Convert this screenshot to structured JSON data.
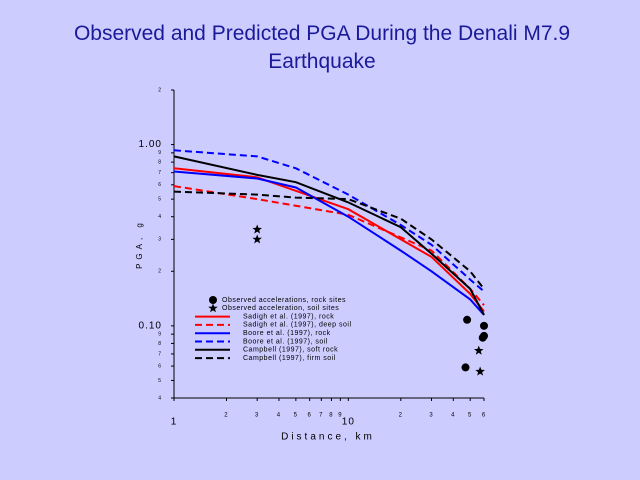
{
  "chart_data": {
    "type": "line",
    "title": "Observed and Predicted PGA During the Denali M7.9 Earthquake",
    "xlabel": "Distance, km",
    "ylabel": "PGA, g",
    "xscale": "log",
    "yscale": "log",
    "xlim": [
      1,
      60
    ],
    "ylim": [
      0.04,
      2
    ],
    "xticks": [
      1,
      2,
      3,
      4,
      5,
      6,
      7,
      8,
      9,
      10,
      {
        "value": 20,
        "label": "2"
      },
      {
        "value": 30,
        "label": "3"
      },
      {
        "value": 40,
        "label": "4"
      },
      {
        "value": 50,
        "label": "5"
      },
      {
        "value": 60,
        "label": "6"
      }
    ],
    "yticks": [
      {
        "value": 0.04,
        "label": "4"
      },
      {
        "value": 0.05,
        "label": "5"
      },
      {
        "value": 0.06,
        "label": "6"
      },
      {
        "value": 0.07,
        "label": "7"
      },
      {
        "value": 0.08,
        "label": "8"
      },
      {
        "value": 0.09,
        "label": "9"
      },
      {
        "value": 0.1,
        "label": "0.10"
      },
      {
        "value": 0.2,
        "label": "2"
      },
      {
        "value": 0.3,
        "label": "3"
      },
      {
        "value": 0.4,
        "label": "4"
      },
      {
        "value": 0.5,
        "label": "5"
      },
      {
        "value": 0.6,
        "label": "6"
      },
      {
        "value": 0.7,
        "label": "7"
      },
      {
        "value": 0.8,
        "label": "8"
      },
      {
        "value": 0.9,
        "label": "9"
      },
      {
        "value": 1,
        "label": "1.00"
      },
      2
    ],
    "series": [
      {
        "name": "Observed accelerations, rock sites",
        "color": "#000000",
        "marker": "circle",
        "x": [
          48,
          47,
          60,
          60,
          59
        ],
        "values": [
          0.108,
          0.059,
          0.1,
          0.088,
          0.086
        ]
      },
      {
        "name": "Observed acceleration, soil sites",
        "color": "#000000",
        "marker": "star",
        "x": [
          3,
          3,
          56,
          57
        ],
        "values": [
          0.34,
          0.3,
          0.073,
          0.056
        ]
      },
      {
        "name": "Sadigh et al. (1997), rock",
        "color": "#ff0000",
        "linestyle": "solid",
        "x": [
          1,
          3,
          10,
          30,
          50,
          60
        ],
        "values": [
          0.74,
          0.66,
          0.44,
          0.24,
          0.15,
          0.12
        ]
      },
      {
        "name": "Sadigh et al. (1997), deep soil",
        "color": "#ff0000",
        "linestyle": "dashed",
        "x": [
          1,
          3,
          10,
          30,
          50,
          60
        ],
        "values": [
          0.59,
          0.5,
          0.41,
          0.26,
          0.16,
          0.13
        ]
      },
      {
        "name": "Boore et al. (1997), rock",
        "color": "#0000ff",
        "linestyle": "solid",
        "x": [
          1,
          3,
          5,
          10,
          20,
          30,
          50,
          60
        ],
        "values": [
          0.71,
          0.65,
          0.58,
          0.4,
          0.26,
          0.2,
          0.14,
          0.115
        ]
      },
      {
        "name": "Boore et al. (1997), soil",
        "color": "#0000ff",
        "linestyle": "dashed",
        "x": [
          1,
          3,
          5,
          10,
          20,
          30,
          50,
          60
        ],
        "values": [
          0.93,
          0.86,
          0.74,
          0.53,
          0.36,
          0.28,
          0.18,
          0.155
        ]
      },
      {
        "name": "Campbell (1997), soft rock",
        "color": "#000000",
        "linestyle": "solid",
        "x": [
          1,
          3,
          5,
          10,
          20,
          30,
          50,
          60
        ],
        "values": [
          0.86,
          0.68,
          0.62,
          0.48,
          0.35,
          0.25,
          0.16,
          0.115
        ]
      },
      {
        "name": "Campbell (1997), firm soil",
        "color": "#000000",
        "linestyle": "dashed",
        "x": [
          1,
          3,
          5,
          10,
          20,
          30,
          50,
          60
        ],
        "values": [
          0.55,
          0.53,
          0.51,
          0.5,
          0.39,
          0.3,
          0.2,
          0.16
        ]
      }
    ]
  }
}
